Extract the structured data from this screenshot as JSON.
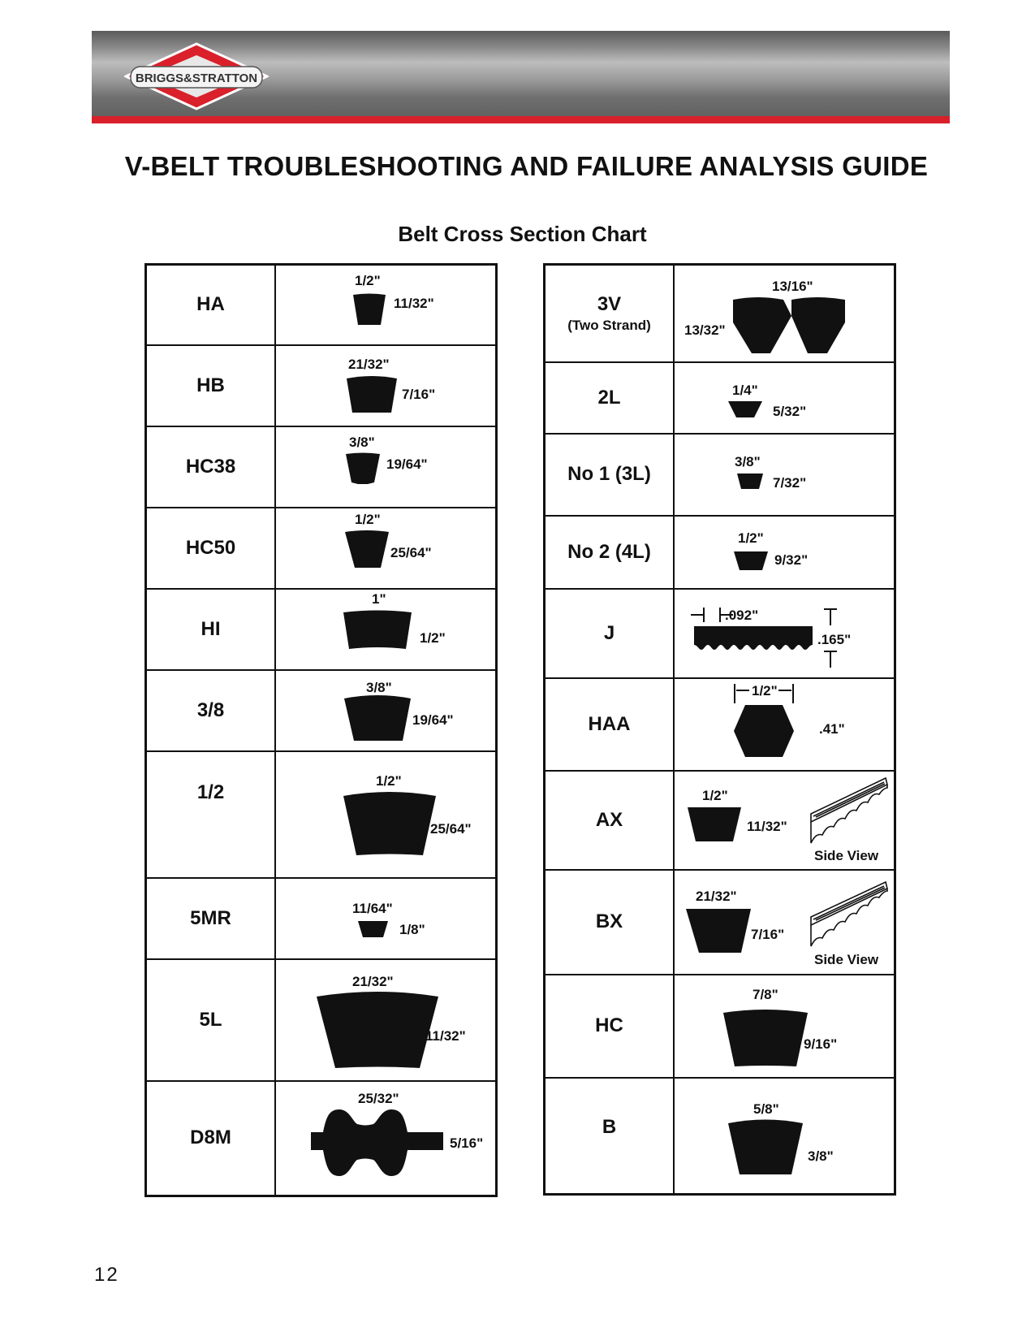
{
  "header": {
    "brand": "BRIGGS&STRATTON",
    "brand_colors": {
      "banner_stripe": "#d9202b",
      "logo_red": "#d9202b"
    }
  },
  "title": "V-BELT TROUBLESHOOTING AND FAILURE ANALYSIS GUIDE",
  "subtitle": "Belt Cross Section Chart",
  "left_table": [
    {
      "name": "HA",
      "top": "1/2\"",
      "side": "11/32\""
    },
    {
      "name": "HB",
      "top": "21/32\"",
      "side": "7/16\""
    },
    {
      "name": "HC38",
      "top": "3/8\"",
      "side": "19/64\""
    },
    {
      "name": "HC50",
      "top": "1/2\"",
      "side": "25/64\""
    },
    {
      "name": "HI",
      "top": "1\"",
      "side": "1/2\""
    },
    {
      "name": "3/8",
      "top": "3/8\"",
      "side": "19/64\""
    },
    {
      "name": "1/2",
      "top": "1/2\"",
      "side": "25/64\""
    },
    {
      "name": "5MR",
      "top": "11/64\"",
      "side": "1/8\""
    },
    {
      "name": "5L",
      "top": "21/32\"",
      "side": "11/32\""
    },
    {
      "name": "D8M",
      "top": "25/32\"",
      "side": "5/16\""
    }
  ],
  "right_table": [
    {
      "name": "3V",
      "sub": "(Two Strand)",
      "top": "13/16\"",
      "side": "13/32\""
    },
    {
      "name": "2L",
      "top": "1/4\"",
      "side": "5/32\""
    },
    {
      "name": "No 1 (3L)",
      "top": "3/8\"",
      "side": "7/32\""
    },
    {
      "name": "No 2 (4L)",
      "top": "1/2\"",
      "side": "9/32\""
    },
    {
      "name": "J",
      "top": ".092\"",
      "side": ".165\""
    },
    {
      "name": "HAA",
      "top": "1/2\"",
      "side": ".41\""
    },
    {
      "name": "AX",
      "top": "1/2\"",
      "side": "11/32\"",
      "note": "Side View"
    },
    {
      "name": "BX",
      "top": "21/32\"",
      "side": "7/16\"",
      "note": "Side View"
    },
    {
      "name": "HC",
      "top": "7/8\"",
      "side": "9/16\""
    },
    {
      "name": "B",
      "top": "5/8\"",
      "side": "3/8\""
    }
  ],
  "page_number": "12"
}
